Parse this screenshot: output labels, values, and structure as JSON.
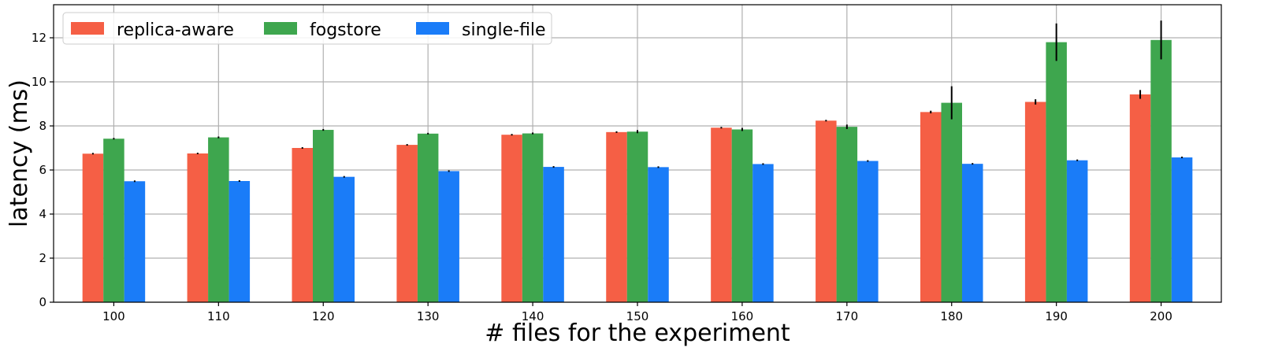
{
  "chart_data": {
    "type": "bar",
    "xlabel": "# files for the experiment",
    "ylabel": "latency (ms)",
    "categories": [
      "100",
      "110",
      "120",
      "130",
      "140",
      "150",
      "160",
      "170",
      "180",
      "190",
      "200"
    ],
    "ylim": [
      0,
      13.5
    ],
    "yticks": [
      0,
      2,
      4,
      6,
      8,
      10,
      12
    ],
    "grid": true,
    "legend_position": "top-left",
    "series": [
      {
        "name": "replica-aware",
        "color": "#f55f45",
        "values": [
          6.74,
          6.75,
          7.0,
          7.14,
          7.6,
          7.72,
          7.92,
          8.24,
          8.63,
          9.09,
          9.43
        ],
        "errors": [
          0.02,
          0.02,
          0.02,
          0.02,
          0.03,
          0.03,
          0.03,
          0.03,
          0.06,
          0.12,
          0.2
        ]
      },
      {
        "name": "fogstore",
        "color": "#3ea64e",
        "values": [
          7.42,
          7.48,
          7.82,
          7.65,
          7.66,
          7.74,
          7.84,
          7.96,
          9.05,
          11.8,
          11.9
        ],
        "errors": [
          0.02,
          0.04,
          0.04,
          0.03,
          0.04,
          0.07,
          0.07,
          0.1,
          0.75,
          0.85,
          0.88
        ]
      },
      {
        "name": "single-file",
        "color": "#1a7cf8",
        "values": [
          5.49,
          5.5,
          5.69,
          5.95,
          6.14,
          6.13,
          6.27,
          6.41,
          6.28,
          6.44,
          6.57
        ],
        "errors": [
          0.02,
          0.01,
          0.01,
          0.02,
          0.02,
          0.02,
          0.01,
          0.02,
          0.02,
          0.02,
          0.02
        ]
      }
    ]
  }
}
